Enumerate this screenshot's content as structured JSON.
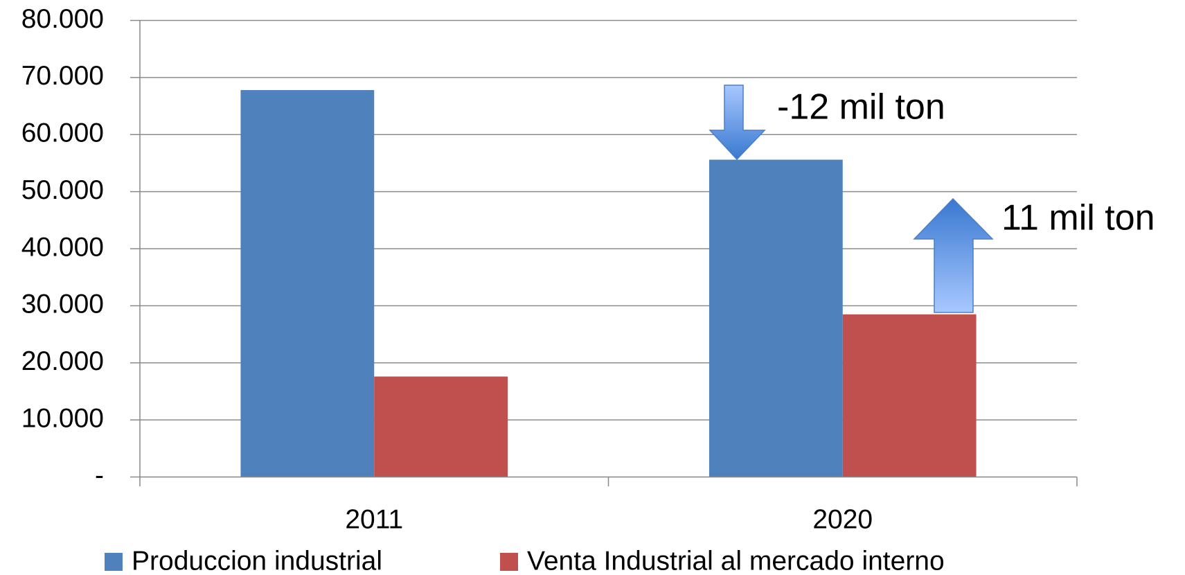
{
  "chart_data": {
    "type": "bar",
    "categories": [
      "2011",
      "2020"
    ],
    "series": [
      {
        "name": "Produccion industrial",
        "color": "#4f81bd",
        "values": [
          67800,
          55600
        ]
      },
      {
        "name": "Venta Industrial al mercado interno",
        "color": "#c0504d",
        "values": [
          17600,
          28500
        ]
      }
    ],
    "ylim": [
      0,
      80000
    ],
    "yticks": [
      {
        "value": 0,
        "label": "-"
      },
      {
        "value": 10000,
        "label": "10.000"
      },
      {
        "value": 20000,
        "label": "20.000"
      },
      {
        "value": 30000,
        "label": "30.000"
      },
      {
        "value": 40000,
        "label": "40.000"
      },
      {
        "value": 50000,
        "label": "50.000"
      },
      {
        "value": 60000,
        "label": "60.000"
      },
      {
        "value": 70000,
        "label": "70.000"
      },
      {
        "value": 80000,
        "label": "80.000"
      }
    ],
    "grid": true,
    "annotations": [
      "-12 mil ton",
      "11 mil ton"
    ],
    "legend": "bottom"
  }
}
